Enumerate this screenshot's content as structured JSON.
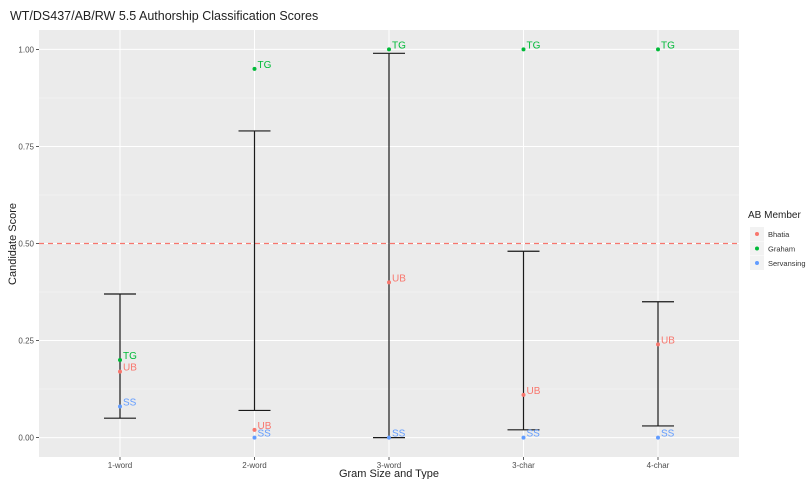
{
  "chart_data": {
    "type": "scatter",
    "title": "WT/DS437/AB/RW 5.5 Authorship Classification Scores",
    "xlabel": "Gram Size and Type",
    "ylabel": "Candidate Score",
    "categories": [
      "1-word",
      "2-word",
      "3-word",
      "3-char",
      "4-char"
    ],
    "ylim": [
      -0.05,
      1.05
    ],
    "yticks": [
      0.0,
      0.25,
      0.5,
      0.75,
      1.0
    ],
    "ytick_labels": [
      "0.00",
      "0.25",
      "0.50",
      "0.75",
      "1.00"
    ],
    "grid": true,
    "threshold": {
      "value": 0.5,
      "color": "#F8766D",
      "style": "dashed"
    },
    "error_bars": [
      {
        "category": "1-word",
        "low": 0.05,
        "high": 0.37
      },
      {
        "category": "2-word",
        "low": 0.07,
        "high": 0.79
      },
      {
        "category": "3-word",
        "low": 0.0,
        "high": 0.99
      },
      {
        "category": "3-char",
        "low": 0.02,
        "high": 0.48
      },
      {
        "category": "4-char",
        "low": 0.03,
        "high": 0.35
      }
    ],
    "series": [
      {
        "name": "Bhatia",
        "color": "#F8766D",
        "label": "UB",
        "values": [
          0.17,
          0.02,
          0.4,
          0.11,
          0.24
        ]
      },
      {
        "name": "Graham",
        "color": "#00BA38",
        "label": "TG",
        "values": [
          0.2,
          0.95,
          1.0,
          1.0,
          1.0
        ]
      },
      {
        "name": "Servansing",
        "color": "#619CFF",
        "label": "SS",
        "values": [
          0.08,
          0.0,
          0.0,
          0.0,
          0.0
        ]
      }
    ],
    "legend": {
      "title": "AB Member",
      "position": "right"
    }
  }
}
